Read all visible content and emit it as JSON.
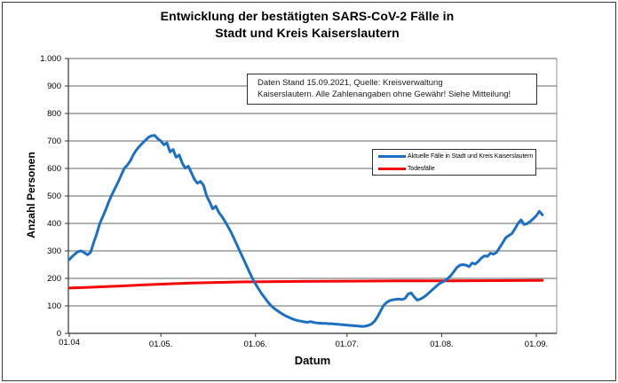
{
  "chart_data": {
    "type": "line",
    "title_line1": "Entwicklung der bestätigten SARS-CoV-2 Fälle in",
    "title_line2": "Stadt und Kreis Kaiserslautern",
    "annotation_line1": "Daten Stand 15.09.2021, Quelle: Kreisverwaltung",
    "annotation_line2": "Kaiserslautern. Alle Zahlenangaben ohne Gewähr! Siehe Mitteilung!",
    "xlabel": "Datum",
    "ylabel": "Anzahl Personen",
    "ylim": [
      0,
      1000
    ],
    "ytick_step": 100,
    "y_tick_labels": [
      "0",
      "100",
      "200",
      "300",
      "400",
      "500",
      "600",
      "700",
      "800",
      "900",
      "1.000"
    ],
    "x_tick_labels": [
      "01.04",
      "01.05.",
      "01.06.",
      "01.07.",
      "01.08.",
      "01.09."
    ],
    "x_tick_days": [
      0,
      30,
      61,
      91,
      122,
      153
    ],
    "x_start_date": "01.04.2021",
    "grid": "horizontal",
    "legend_position": "inside-right",
    "colors": {
      "cases": "#1B6FC5",
      "deaths": "#F40606",
      "gridline": "#666666",
      "axis": "#333333",
      "plot_border": "#909090"
    },
    "series": [
      {
        "name": "Aktuelle Fälle in Stadt und Kreis Kaiserslautern",
        "color": "#1B6FC5",
        "x_unit": "day index from 01.04",
        "values": [
          268,
          280,
          290,
          298,
          300,
          293,
          286,
          295,
          330,
          362,
          400,
          425,
          452,
          480,
          505,
          528,
          550,
          575,
          600,
          612,
          628,
          650,
          667,
          681,
          692,
          703,
          714,
          719,
          720,
          708,
          700,
          686,
          693,
          660,
          669,
          641,
          649,
          620,
          601,
          608,
          585,
          560,
          546,
          553,
          538,
          500,
          478,
          453,
          463,
          440,
          425,
          408,
          388,
          368,
          345,
          320,
          296,
          272,
          248,
          224,
          200,
          180,
          162,
          145,
          130,
          115,
          102,
          92,
          84,
          76,
          69,
          63,
          58,
          53,
          49,
          46,
          44,
          42,
          40,
          43,
          40,
          38,
          37,
          36,
          36,
          35,
          35,
          34,
          33,
          32,
          31,
          30,
          29,
          28,
          27,
          26,
          25,
          26,
          29,
          34,
          44,
          60,
          82,
          102,
          113,
          119,
          122,
          124,
          125,
          123,
          127,
          143,
          147,
          133,
          121,
          125,
          131,
          139,
          149,
          159,
          169,
          179,
          185,
          191,
          200,
          210,
          225,
          240,
          248,
          250,
          248,
          243,
          256,
          252,
          262,
          274,
          282,
          280,
          292,
          288,
          295,
          312,
          330,
          348,
          356,
          363,
          380,
          400,
          413,
          396,
          399,
          407,
          417,
          428,
          444,
          431
        ]
      },
      {
        "name": "Todesfälle",
        "color": "#F40606",
        "x_unit": "day index from 01.04",
        "points": [
          [
            0,
            165
          ],
          [
            8,
            168
          ],
          [
            16,
            172
          ],
          [
            24,
            176
          ],
          [
            32,
            180
          ],
          [
            40,
            183
          ],
          [
            48,
            185
          ],
          [
            56,
            187
          ],
          [
            64,
            188
          ],
          [
            76,
            189
          ],
          [
            92,
            190
          ],
          [
            108,
            191
          ],
          [
            124,
            191
          ],
          [
            140,
            192
          ],
          [
            155,
            193
          ]
        ]
      }
    ]
  }
}
